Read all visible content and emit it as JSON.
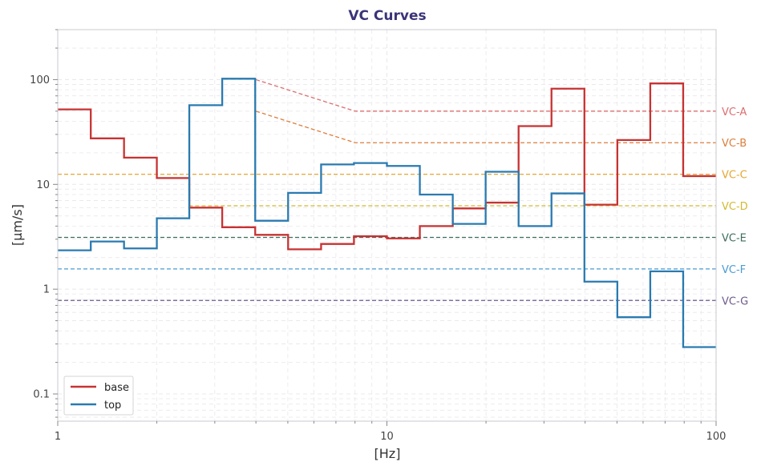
{
  "chart_data": {
    "type": "line",
    "title": "VC Curves",
    "xlabel": "[Hz]",
    "ylabel": "[µm/s]",
    "xscale": "log",
    "yscale": "log",
    "xlim": [
      1,
      100
    ],
    "ylim": [
      0.055,
      300
    ],
    "grid": true,
    "legend_placement": "lower-left",
    "x_ticks": [
      {
        "value": 1,
        "label": "1"
      },
      {
        "value": 10,
        "label": "10"
      },
      {
        "value": 100,
        "label": "100"
      }
    ],
    "y_ticks": [
      {
        "value": 0.1,
        "label": "0.1"
      },
      {
        "value": 1,
        "label": "1"
      },
      {
        "value": 10,
        "label": "10"
      },
      {
        "value": 100,
        "label": "100"
      }
    ],
    "band_edges_hz": [
      1,
      1.26,
      1.59,
      2,
      2.51,
      3.16,
      3.98,
      5.01,
      6.31,
      7.94,
      10,
      12.59,
      15.85,
      19.95,
      25.12,
      31.62,
      39.81,
      50.12,
      63.1,
      79.43,
      100
    ],
    "series": [
      {
        "name": "base",
        "color": "#c83232",
        "values": [
          52,
          27.5,
          18,
          11.5,
          6,
          3.9,
          3.3,
          2.4,
          2.7,
          3.2,
          3.05,
          4.0,
          5.9,
          6.7,
          36,
          82,
          6.4,
          26.5,
          92,
          12
        ]
      },
      {
        "name": "top",
        "color": "#2a7ab0",
        "values": [
          2.35,
          2.85,
          2.45,
          4.75,
          57,
          102,
          4.5,
          8.3,
          15.5,
          16,
          15,
          8,
          4.2,
          13.2,
          4,
          8.2,
          1.18,
          0.54,
          1.48,
          0.28
        ]
      }
    ],
    "criteria": [
      {
        "name": "VC-A",
        "color": "#dc6e6e",
        "points": [
          [
            4,
            100
          ],
          [
            8,
            50
          ],
          [
            100,
            50
          ]
        ],
        "label_value": 50
      },
      {
        "name": "VC-B",
        "color": "#dc7d3c",
        "points": [
          [
            4,
            50
          ],
          [
            8,
            25
          ],
          [
            100,
            25
          ]
        ],
        "label_value": 25
      },
      {
        "name": "VC-C",
        "color": "#e6a532",
        "points": [
          [
            1,
            12.5
          ],
          [
            100,
            12.5
          ]
        ],
        "label_value": 12.5
      },
      {
        "name": "VC-D",
        "color": "#d2b932",
        "points": [
          [
            2.5,
            6.25
          ],
          [
            100,
            6.25
          ]
        ],
        "label_value": 6.25
      },
      {
        "name": "VC-E",
        "color": "#3c6e5a",
        "points": [
          [
            1,
            3.12
          ],
          [
            100,
            3.12
          ]
        ],
        "label_value": 3.12
      },
      {
        "name": "VC-F",
        "color": "#4b9bd2",
        "points": [
          [
            1,
            1.56
          ],
          [
            100,
            1.56
          ]
        ],
        "label_value": 1.56
      },
      {
        "name": "VC-G",
        "color": "#6e5a8c",
        "points": [
          [
            1,
            0.78
          ],
          [
            100,
            0.78
          ]
        ],
        "label_value": 0.78
      }
    ]
  },
  "colors": {
    "title": "#3a3478",
    "axes": "#c8c8d2",
    "grid": "#e8e8ec"
  }
}
